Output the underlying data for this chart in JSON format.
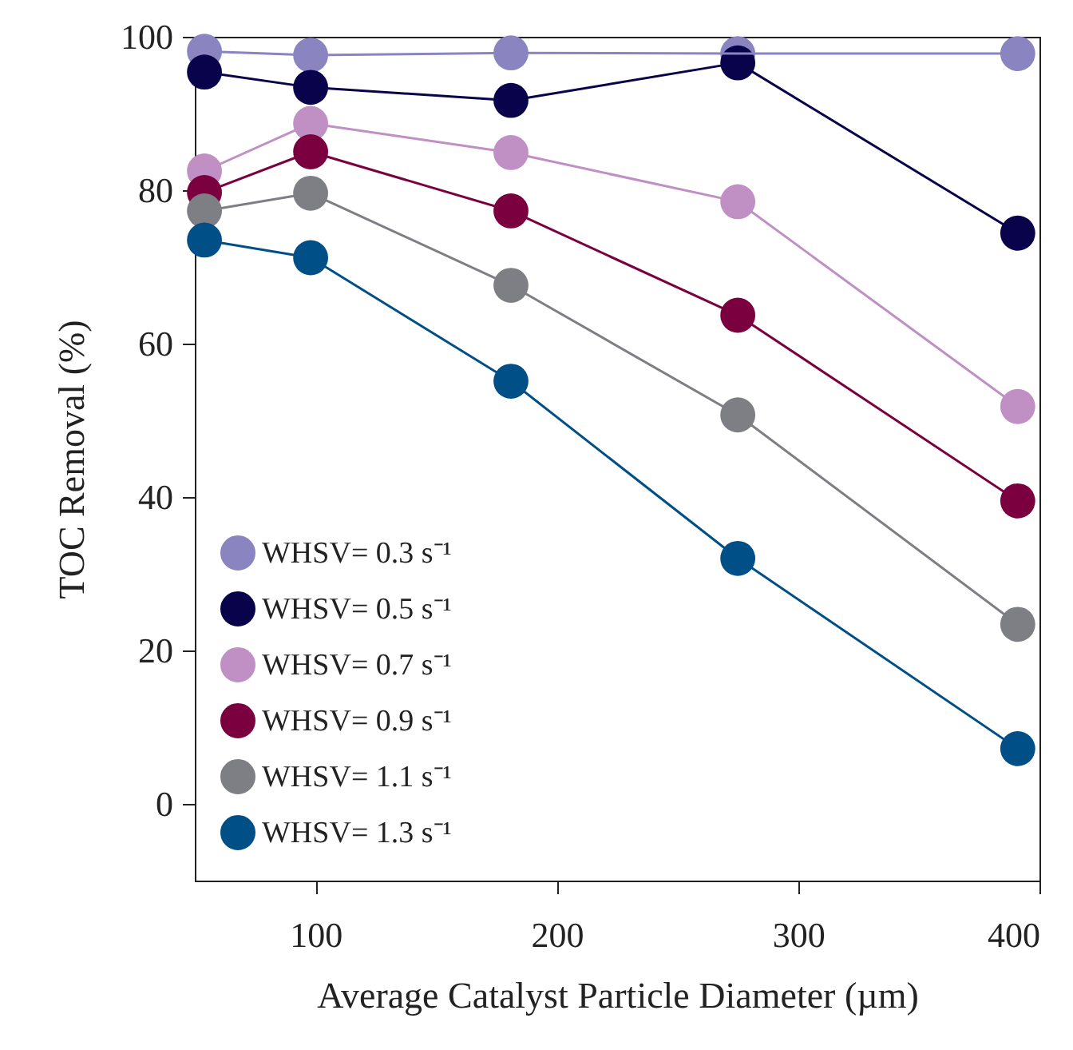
{
  "chart_data": {
    "type": "line",
    "xlabel": "Average Catalyst Particle Diameter (µm)",
    "ylabel": "TOC Removal (%)",
    "x": [
      54,
      98,
      181,
      275,
      391
    ],
    "xlim": [
      50,
      400
    ],
    "xticks": [
      100,
      200,
      300,
      400
    ],
    "ylim": [
      -10,
      100
    ],
    "yticks": [
      0,
      20,
      40,
      60,
      80,
      100
    ],
    "grid": false,
    "legend": "bottom left",
    "marker": "circle",
    "line_style": "solid",
    "series": [
      {
        "name": "WHSV= 0.3 s⁻¹",
        "color": "#8a84c0",
        "values": [
          98.1,
          97.6,
          97.9,
          97.8,
          97.8
        ]
      },
      {
        "name": "WHSV= 0.5 s⁻¹",
        "color": "#08034a",
        "values": [
          95.4,
          93.4,
          91.7,
          96.6,
          74.4
        ]
      },
      {
        "name": "WHSV= 0.7 s⁻¹",
        "color": "#c08fc4",
        "values": [
          82.5,
          88.7,
          84.9,
          78.5,
          51.8
        ]
      },
      {
        "name": "WHSV= 0.9 s⁻¹",
        "color": "#7a003f",
        "values": [
          79.7,
          85.0,
          77.3,
          63.7,
          39.5
        ]
      },
      {
        "name": "WHSV= 1.1 s⁻¹",
        "color": "#7e7f84",
        "values": [
          77.3,
          79.6,
          67.6,
          50.7,
          23.4
        ]
      },
      {
        "name": "WHSV= 1.3 s⁻¹",
        "color": "#004f86",
        "values": [
          73.5,
          71.2,
          55.1,
          32.0,
          7.2
        ]
      }
    ]
  }
}
